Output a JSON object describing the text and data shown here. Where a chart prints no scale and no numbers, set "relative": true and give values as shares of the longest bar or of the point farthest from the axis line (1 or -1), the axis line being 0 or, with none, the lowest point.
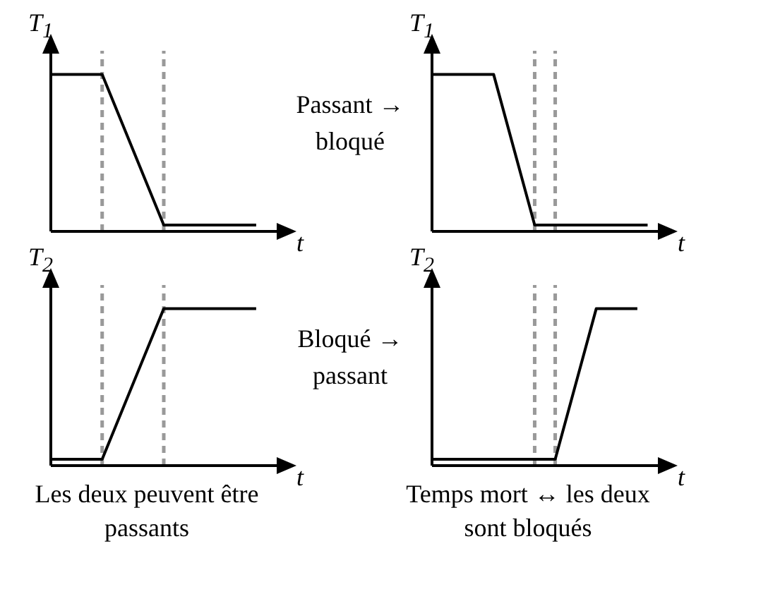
{
  "chart_data": [
    {
      "type": "line",
      "relative": true,
      "ylabel": "T$_{1}$",
      "xlabel": "t",
      "marker": "none",
      "line_style": "solid",
      "grid": false,
      "legend": false,
      "annotations": [
        "Passant → bloqué"
      ],
      "categories": [
        null,
        null,
        null,
        null,
        null,
        null,
        null,
        null,
        null,
        null,
        null,
        null,
        null,
        null,
        null,
        null,
        null,
        null,
        null,
        null,
        null,
        null,
        null
      ],
      "series": [
        {
          "color": "#000000",
          "values": [
            1,
            null,
            null,
            null,
            null,
            1,
            null,
            null,
            null,
            null,
            null,
            0.04,
            null,
            null,
            null,
            null,
            null,
            null,
            null,
            null,
            0.04,
            null,
            null
          ]
        }
      ]
    },
    {
      "type": "line",
      "relative": true,
      "ylabel": "T$_{1}$",
      "xlabel": "t",
      "marker": "none",
      "line_style": "solid",
      "grid": false,
      "legend": false,
      "categories": [
        null,
        null,
        null,
        null,
        null,
        null,
        null,
        null,
        null,
        null,
        null,
        null,
        null,
        null,
        null,
        null,
        null,
        null,
        null,
        null,
        null,
        null,
        null
      ],
      "series": [
        {
          "color": "#000000",
          "values": [
            1,
            null,
            null,
            null,
            null,
            null,
            1,
            null,
            null,
            null,
            0.04,
            null,
            null,
            null,
            null,
            null,
            null,
            null,
            null,
            null,
            null,
            0.04,
            null
          ]
        }
      ]
    },
    {
      "type": "line",
      "relative": true,
      "ylabel": "T$_{2}$",
      "xlabel": "t",
      "marker": "none",
      "line_style": "solid",
      "grid": false,
      "legend": false,
      "annotations": [
        "Bloqué → passant",
        "Les deux peuvent être passants"
      ],
      "categories": [
        null,
        null,
        null,
        null,
        null,
        null,
        null,
        null,
        null,
        null,
        null,
        null,
        null,
        null,
        null,
        null,
        null,
        null,
        null,
        null,
        null,
        null,
        null
      ],
      "series": [
        {
          "color": "#000000",
          "values": [
            0.04,
            null,
            null,
            null,
            null,
            0.04,
            null,
            null,
            null,
            null,
            null,
            1,
            null,
            null,
            null,
            null,
            null,
            null,
            null,
            null,
            1,
            null,
            null
          ]
        }
      ]
    },
    {
      "type": "line",
      "relative": true,
      "ylabel": "T$_{2}$",
      "xlabel": "t",
      "marker": "none",
      "line_style": "solid",
      "grid": false,
      "legend": false,
      "annotations": [
        "Temps mort ↔ les deux sont bloqués"
      ],
      "categories": [
        null,
        null,
        null,
        null,
        null,
        null,
        null,
        null,
        null,
        null,
        null,
        null,
        null,
        null,
        null,
        null,
        null,
        null,
        null,
        null,
        null,
        null,
        null
      ],
      "series": [
        {
          "color": "#000000",
          "values": [
            0.04,
            null,
            null,
            null,
            null,
            null,
            null,
            null,
            null,
            null,
            null,
            null,
            0.04,
            null,
            null,
            null,
            1,
            null,
            null,
            null,
            1,
            null,
            null
          ]
        }
      ]
    }
  ]
}
